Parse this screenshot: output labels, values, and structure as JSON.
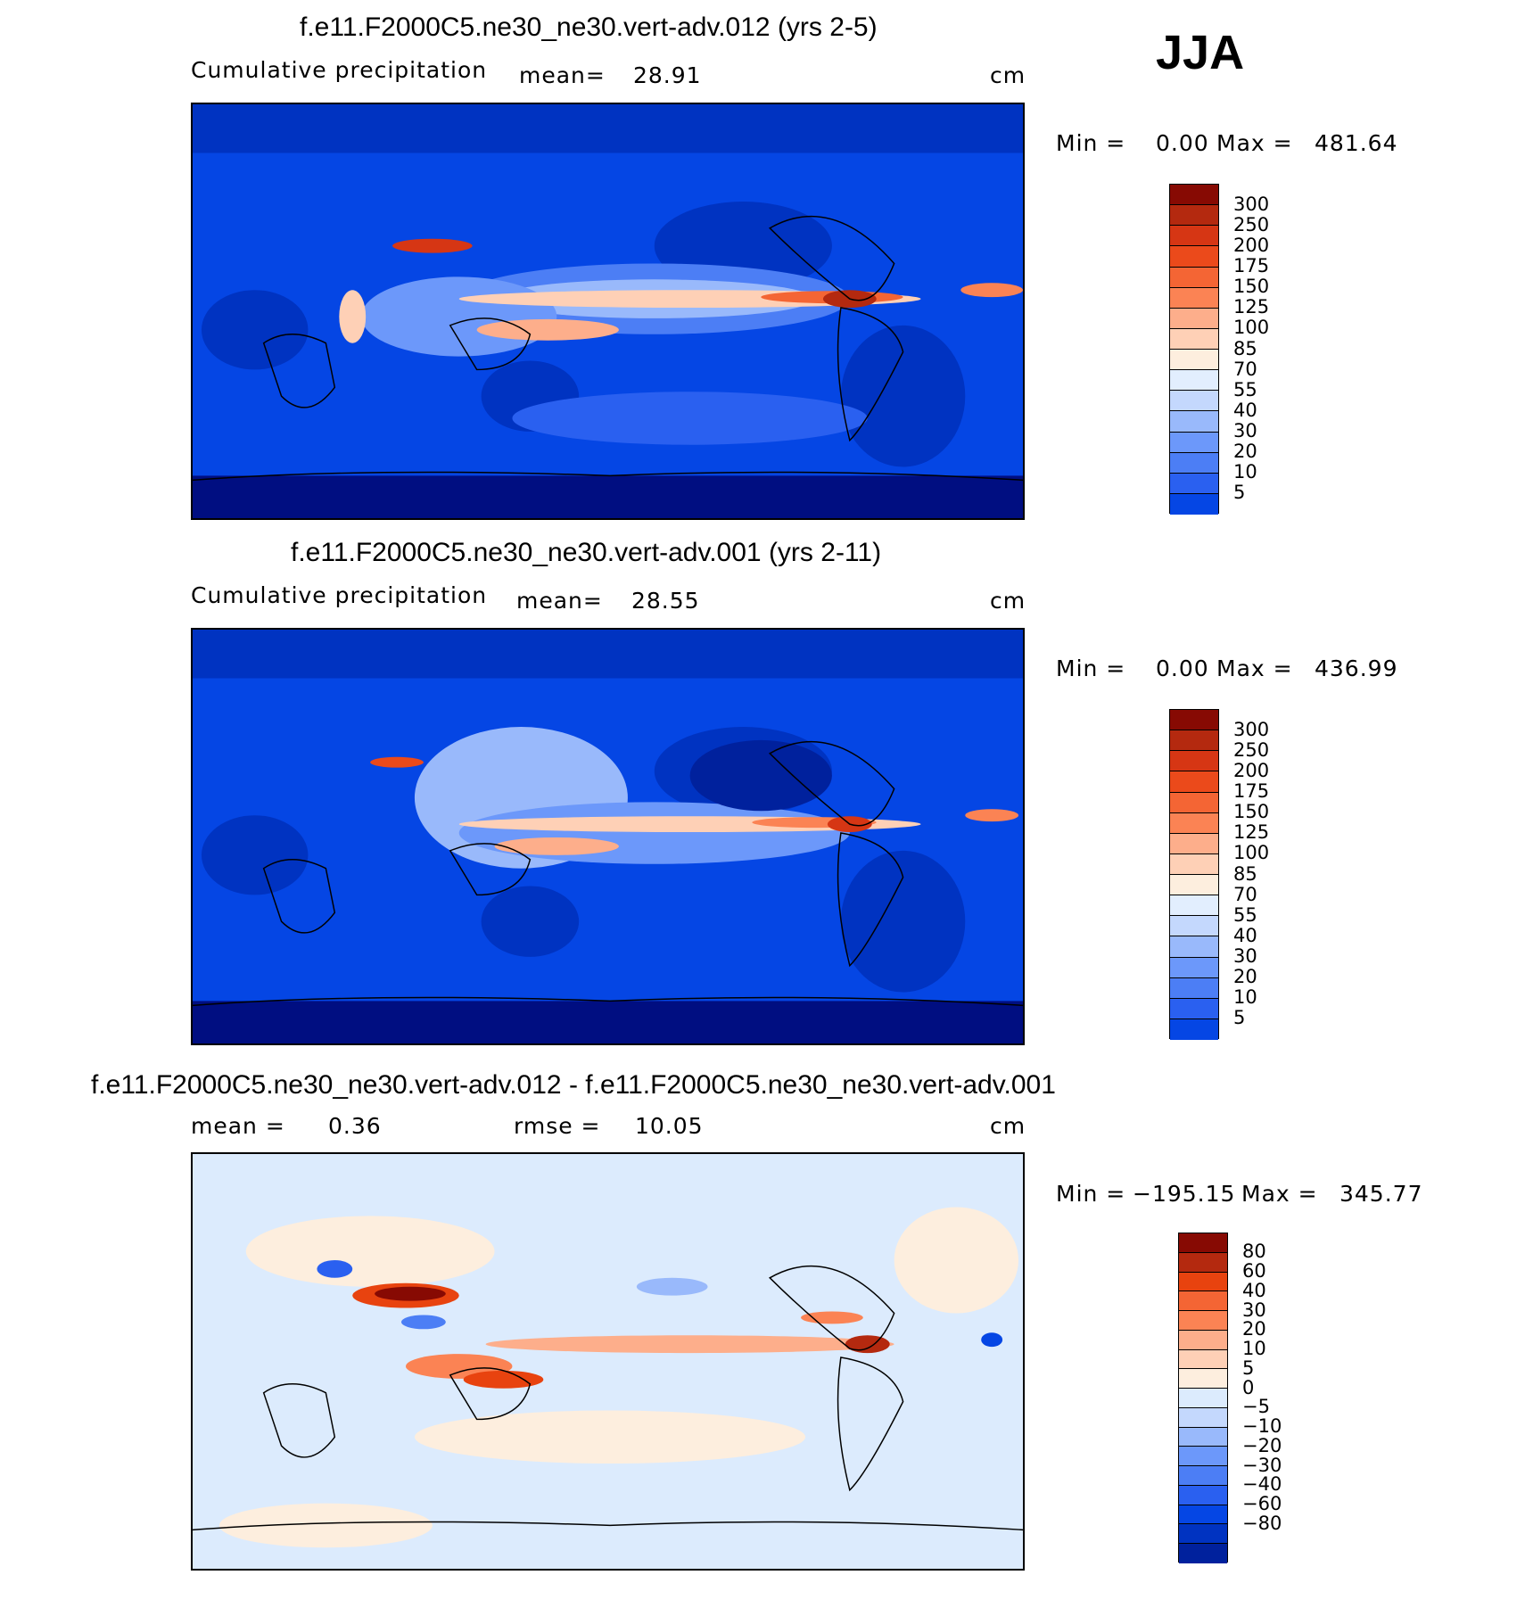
{
  "season_label": "JJA",
  "colors": {
    "precip_scale": [
      "#000e81",
      "#00219d",
      "#0033c1",
      "#0546e4",
      "#2a60f0",
      "#4c7ef5",
      "#6c98fa",
      "#99b9fb",
      "#c4d8fd",
      "#e2eefe",
      "#fdeede",
      "#fed0b6",
      "#fdae8b",
      "#fb8354",
      "#f46534",
      "#eb4a1b",
      "#d63614",
      "#b4290f",
      "#870a03"
    ],
    "diff_scale": [
      "#000e81",
      "#00219d",
      "#0033c1",
      "#0546e4",
      "#2a60f0",
      "#4c7ef5",
      "#6c98fa",
      "#99b9fb",
      "#c4d8fd",
      "#dcebfd",
      "#fdeede",
      "#fed0b6",
      "#fdae8b",
      "#fb8354",
      "#f46534",
      "#e8430f",
      "#b4290f",
      "#870a03"
    ]
  },
  "panels": [
    {
      "title": "f.e11.F2000C5.ne30_ne30.vert-adv.012 (yrs 2-5)",
      "left_label": "Cumulative precipitation",
      "mean_label": "mean=",
      "mean_value": "28.91",
      "units": "cm",
      "min_label": "Min =",
      "min_value": "0.00",
      "max_label": "Max =",
      "max_value": "481.64",
      "ticks": [
        "300",
        "250",
        "200",
        "175",
        "150",
        "125",
        "100",
        "85",
        "70",
        "55",
        "40",
        "30",
        "20",
        "10",
        "5"
      ]
    },
    {
      "title": "f.e11.F2000C5.ne30_ne30.vert-adv.001 (yrs 2-11)",
      "left_label": "Cumulative precipitation",
      "mean_label": "mean=",
      "mean_value": "28.55",
      "units": "cm",
      "min_label": "Min =",
      "min_value": "0.00",
      "max_label": "Max =",
      "max_value": "436.99",
      "ticks": [
        "300",
        "250",
        "200",
        "175",
        "150",
        "125",
        "100",
        "85",
        "70",
        "55",
        "40",
        "30",
        "20",
        "10",
        "5"
      ]
    },
    {
      "title": "f.e11.F2000C5.ne30_ne30.vert-adv.012 - f.e11.F2000C5.ne30_ne30.vert-adv.001",
      "mean_label": "mean =",
      "mean_value": "0.36",
      "rmse_label": "rmse =",
      "rmse_value": "10.05",
      "units": "cm",
      "min_label": "Min =",
      "min_value": "−195.15",
      "max_label": "Max =",
      "max_value": "345.77",
      "ticks": [
        "80",
        "60",
        "40",
        "30",
        "20",
        "10",
        "5",
        "0",
        "−5",
        "−10",
        "−20",
        "−30",
        "−40",
        "−60",
        "−80"
      ]
    }
  ]
}
